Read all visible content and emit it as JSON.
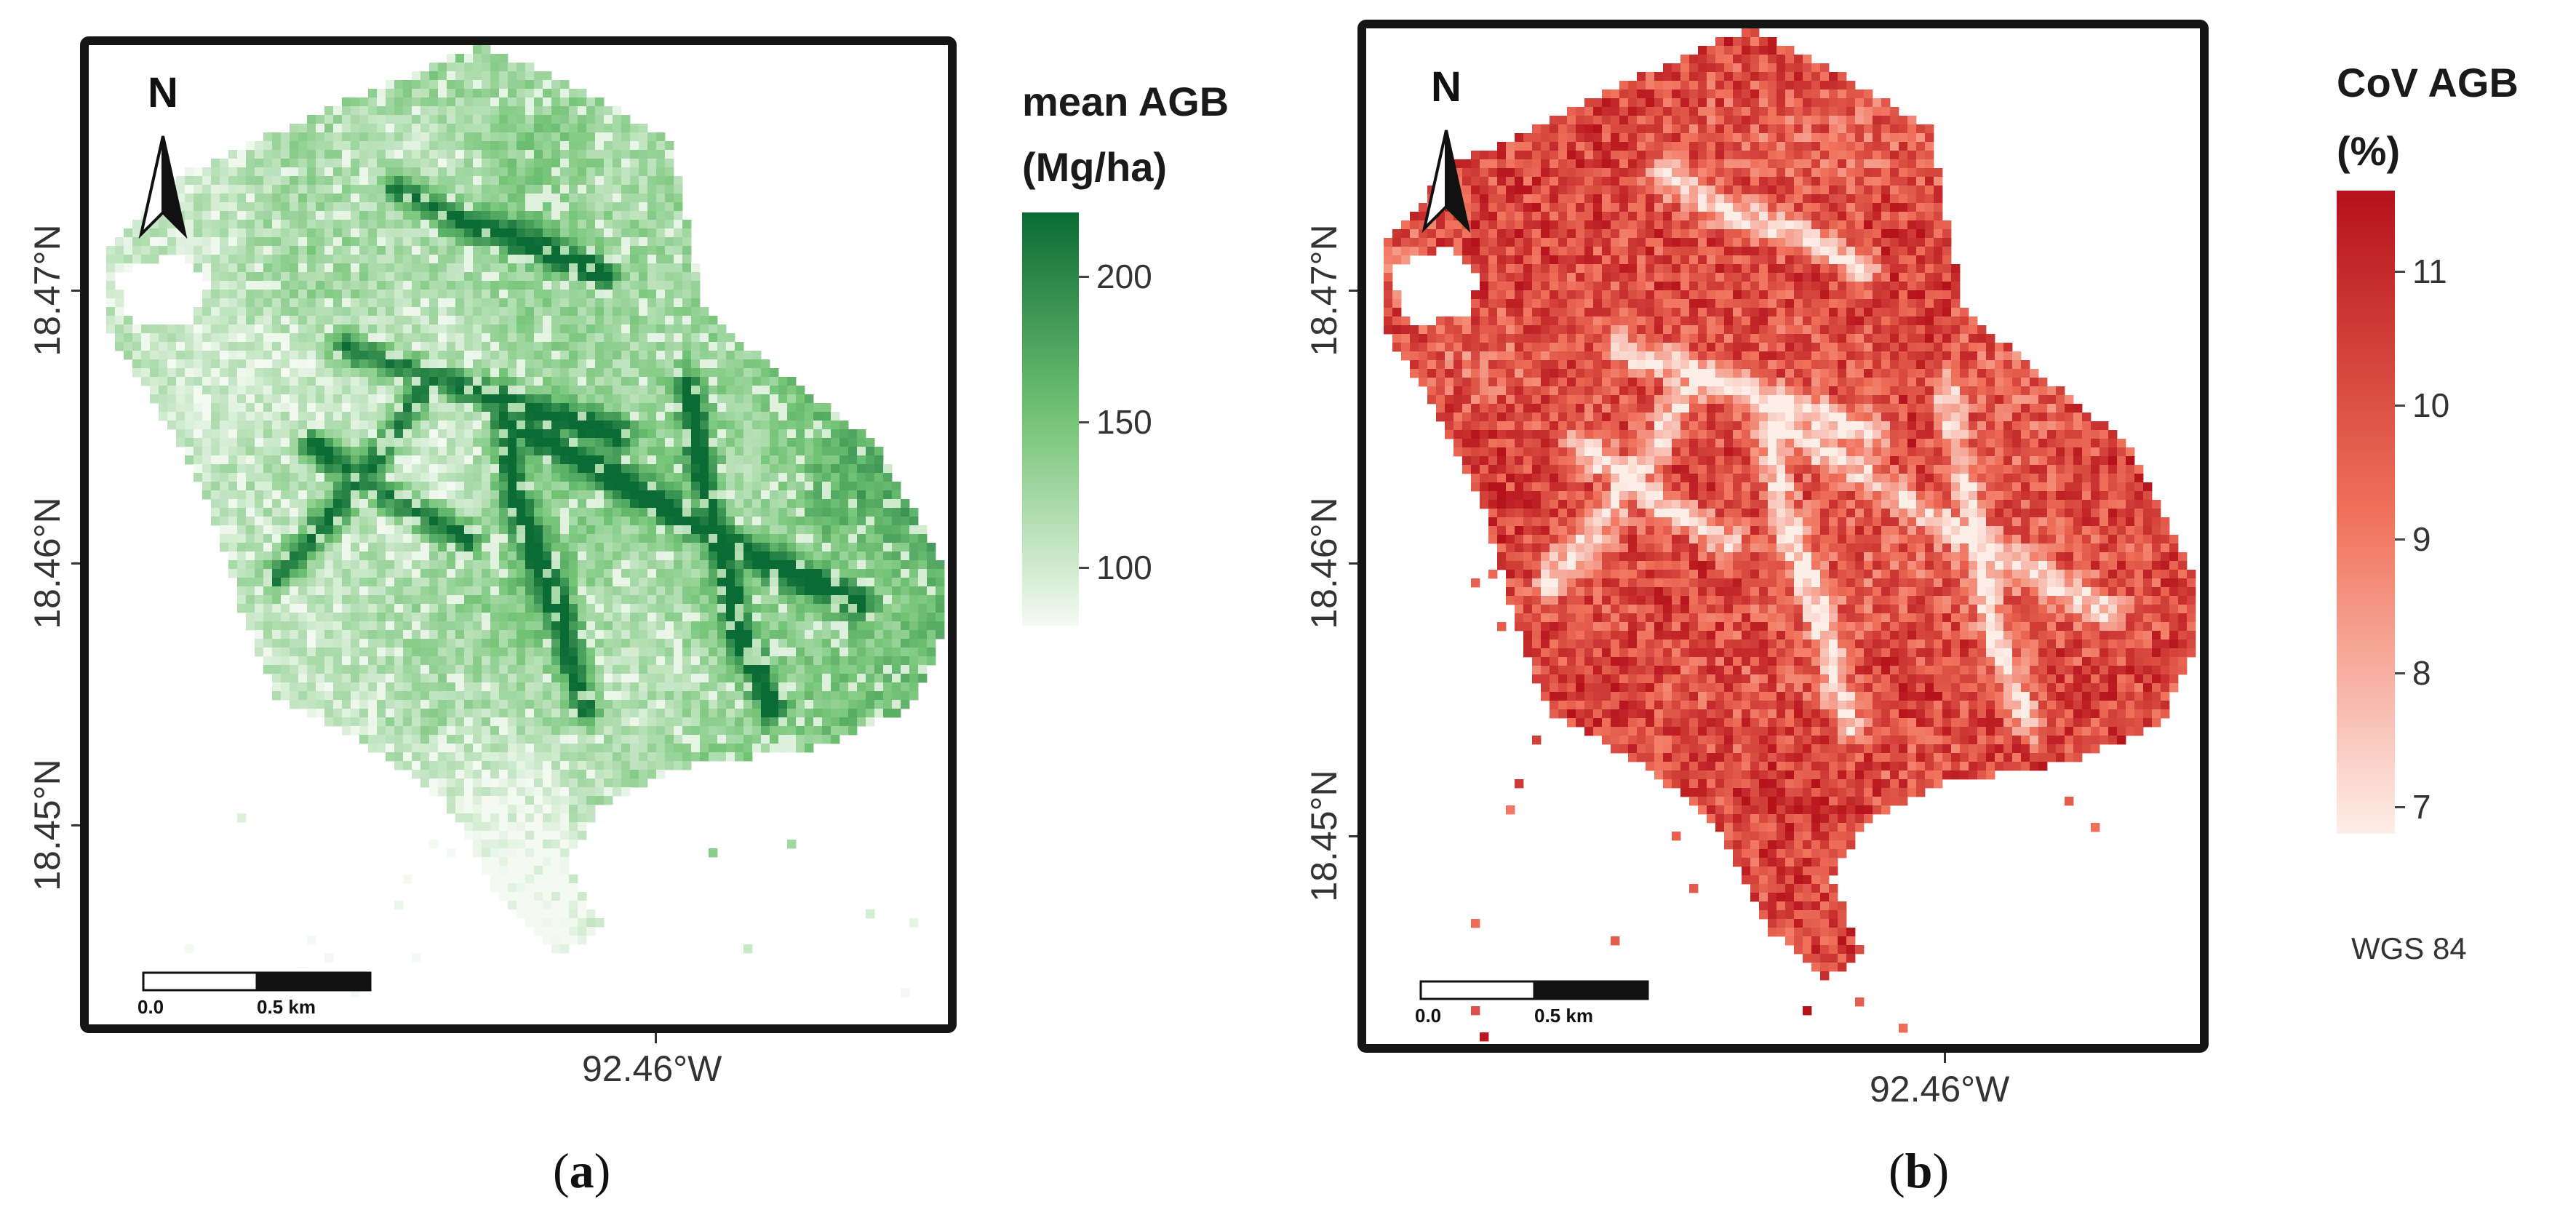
{
  "panels": [
    {
      "id": "a",
      "label": "a",
      "north_label": "N",
      "lat_labels": [
        "18.47°N",
        "18.46°N",
        "18.45°N"
      ],
      "lon_label": "92.46°W",
      "scale_labels": [
        "0.0",
        "0.5 km"
      ],
      "legend": {
        "title_line1": "mean AGB",
        "title_line2": "(Mg/ha)",
        "ticks": [
          "200",
          "150",
          "100"
        ],
        "tick_values": [
          200,
          150,
          100
        ],
        "range": [
          80,
          222
        ],
        "color_low": "#f4faf2",
        "color_mid": "#74c476",
        "color_high": "#0b6b34"
      }
    },
    {
      "id": "b",
      "label": "b",
      "north_label": "N",
      "lat_labels": [
        "18.47°N",
        "18.46°N",
        "18.45°N"
      ],
      "lon_label": "92.46°W",
      "scale_labels": [
        "0.0",
        "0.5 km"
      ],
      "legend": {
        "title_line1": "CoV AGB",
        "title_line2": "(%)",
        "ticks": [
          "11",
          "10",
          "9",
          "8",
          "7"
        ],
        "tick_values": [
          11,
          10,
          9,
          8,
          7
        ],
        "range": [
          6.8,
          11.6
        ],
        "color_low": "#fdeee8",
        "color_mid": "#f0715a",
        "color_high": "#b5121b"
      },
      "crs": "WGS 84"
    }
  ]
}
